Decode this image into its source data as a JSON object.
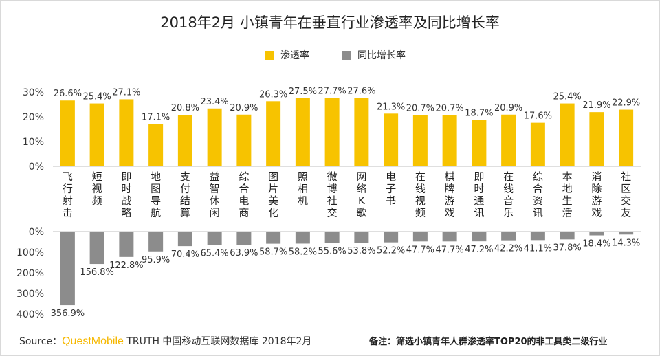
{
  "chart_data": {
    "type": "bar",
    "title": "2018年2月 小镇青年在垂直行业渗透率及同比增长率",
    "legend": [
      "渗透率",
      "同比增长率"
    ],
    "colors": {
      "penetration": "#f7c300",
      "growth": "#8c8c8c"
    },
    "categories": [
      "飞行射击",
      "短视频",
      "即时战略",
      "地图导航",
      "支付结算",
      "益智休闲",
      "综合电商",
      "图片美化",
      "照相机",
      "微博社交",
      "网络K歌",
      "电子书",
      "在线视频",
      "棋牌游戏",
      "即时通讯",
      "在线音乐",
      "综合资讯",
      "本地生活",
      "消除游戏",
      "社区交友"
    ],
    "series": [
      {
        "name": "渗透率",
        "values": [
          26.6,
          25.4,
          27.1,
          17.1,
          20.8,
          23.4,
          20.9,
          26.3,
          27.5,
          27.7,
          27.6,
          21.3,
          20.7,
          20.7,
          18.7,
          20.9,
          17.6,
          25.4,
          21.9,
          22.9
        ],
        "labels": [
          "26.6%",
          "25.4%",
          "27.1%",
          "17.1%",
          "20.8%",
          "23.4%",
          "20.9%",
          "26.3%",
          "27.5%",
          "27.7%",
          "27.6%",
          "21.3%",
          "20.7%",
          "20.7%",
          "18.7%",
          "20.9%",
          "17.6%",
          "25.4%",
          "21.9%",
          "22.9%"
        ],
        "ylim": [
          0,
          30
        ],
        "yticks": [
          "30%",
          "20%",
          "10%",
          "0%"
        ]
      },
      {
        "name": "同比增长率",
        "values": [
          356.9,
          156.8,
          122.8,
          95.9,
          70.4,
          65.4,
          63.9,
          58.7,
          58.2,
          55.6,
          53.8,
          52.2,
          47.7,
          47.7,
          47.2,
          42.2,
          41.1,
          37.8,
          18.4,
          14.3
        ],
        "labels": [
          "356.9%",
          "156.8%",
          "122.8%",
          "95.9%",
          "70.4%",
          "65.4%",
          "63.9%",
          "58.7%",
          "58.2%",
          "55.6%",
          "53.8%",
          "52.2%",
          "47.7%",
          "47.7%",
          "47.2%",
          "42.2%",
          "41.1%",
          "37.8%",
          "18.4%",
          "14.3%"
        ],
        "ylim": [
          0,
          400
        ],
        "yticks": [
          "0%",
          "100%",
          "200%",
          "300%",
          "400%"
        ]
      }
    ]
  },
  "footer": {
    "source_prefix": "Source：",
    "source_brand": "QuestMobile",
    "source_rest": " TRUTH 中国移动互联网数据库 2018年2月",
    "note": "备注：筛选小镇青年人群渗透率TOP20的非工具类二级行业"
  }
}
